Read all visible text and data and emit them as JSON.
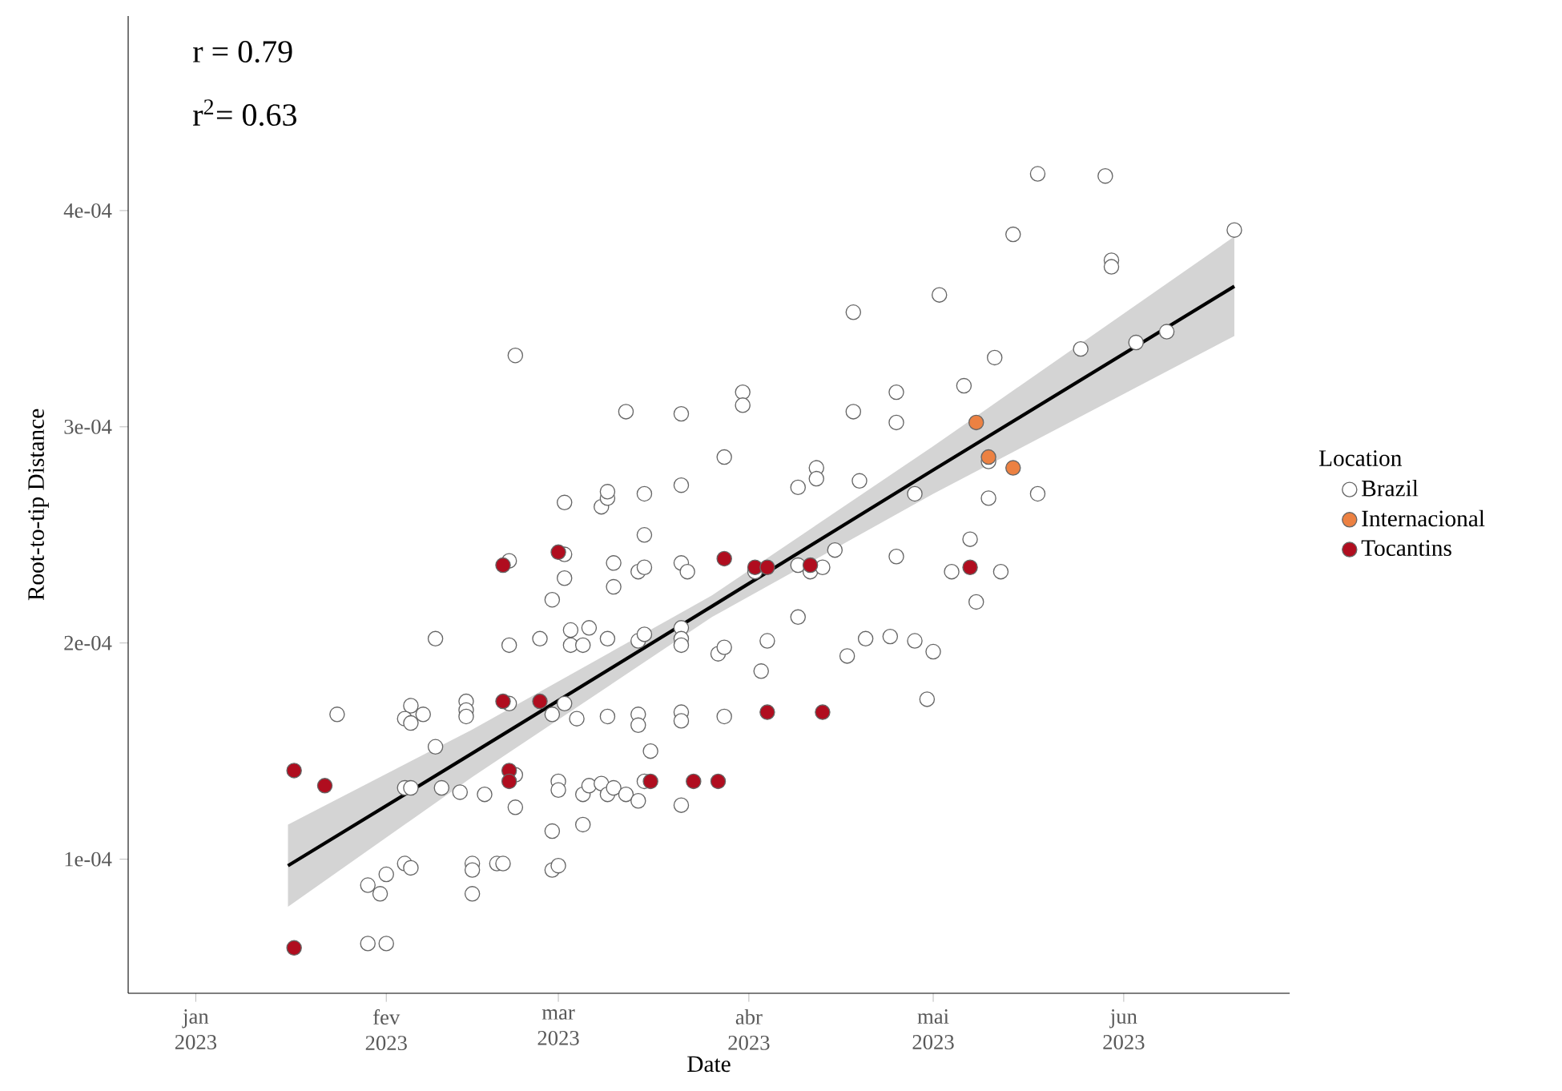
{
  "chart_data": {
    "type": "scatter",
    "xlabel": "Date",
    "ylabel": "Root-to-tip Distance",
    "legend_title": "Location",
    "legend": "right",
    "marker": "circle",
    "annotations": [
      "r = 0.79",
      "r$^{2}$= 0.63"
    ],
    "xlim": [
      "2022-12-21",
      "2023-06-28"
    ],
    "ylim": [
      3.8e-05,
      0.00049
    ],
    "xticks": [
      {
        "value": "2023-01-01",
        "label": "jan 2023"
      },
      {
        "value": "2023-02-01",
        "label": "fev 2023"
      },
      {
        "value": "2023-03-01",
        "label": "mar 2023"
      },
      {
        "value": "2023-04-01",
        "label": "abr 2023"
      },
      {
        "value": "2023-05-01",
        "label": "mai 2023"
      },
      {
        "value": "2023-06-01",
        "label": "jun 2023"
      }
    ],
    "yticks": [
      {
        "value": 0.0001,
        "label": "1e-04"
      },
      {
        "value": 0.0002,
        "label": "2e-04"
      },
      {
        "value": 0.0003,
        "label": "3e-04"
      },
      {
        "value": 0.0004,
        "label": "4e-04"
      }
    ],
    "series": [
      {
        "name": "Brazil",
        "color": "#ffffff",
        "x": [
          "2023-01-24",
          "2023-01-29",
          "2023-01-31",
          "2023-01-29",
          "2023-02-01",
          "2023-02-01",
          "2023-02-04",
          "2023-02-05",
          "2023-02-04",
          "2023-02-05",
          "2023-02-05",
          "2023-02-04",
          "2023-02-05",
          "2023-02-07",
          "2023-02-09",
          "2023-02-09",
          "2023-02-10",
          "2023-02-13",
          "2023-02-17",
          "2023-02-14",
          "2023-02-14",
          "2023-02-14",
          "2023-02-15",
          "2023-02-15",
          "2023-02-15",
          "2023-02-19",
          "2023-02-20",
          "2023-02-21",
          "2023-02-21",
          "2023-02-22",
          "2023-02-21",
          "2023-02-22",
          "2023-02-22",
          "2023-02-28",
          "2023-02-26",
          "2023-02-28",
          "2023-02-28",
          "2023-02-28",
          "2023-03-01",
          "2023-03-01",
          "2023-03-01",
          "2023-03-02",
          "2023-03-02",
          "2023-03-02",
          "2023-03-03",
          "2023-03-03",
          "2023-03-02",
          "2023-03-04",
          "2023-03-05",
          "2023-03-05",
          "2023-03-05",
          "2023-03-06",
          "2023-03-06",
          "2023-03-08",
          "2023-03-08",
          "2023-03-09",
          "2023-03-09",
          "2023-03-09",
          "2023-03-09",
          "2023-03-09",
          "2023-03-10",
          "2023-03-10",
          "2023-03-10",
          "2023-03-12",
          "2023-03-12",
          "2023-03-14",
          "2023-03-15",
          "2023-03-14",
          "2023-03-15",
          "2023-03-14",
          "2023-03-14",
          "2023-03-14",
          "2023-03-15",
          "2023-03-15",
          "2023-03-15",
          "2023-03-16",
          "2023-03-21",
          "2023-03-21",
          "2023-03-21",
          "2023-03-22",
          "2023-03-21",
          "2023-03-21",
          "2023-03-21",
          "2023-03-21",
          "2023-03-21",
          "2023-03-21",
          "2023-03-27",
          "2023-03-28",
          "2023-03-28",
          "2023-03-28",
          "2023-03-31",
          "2023-03-31",
          "2023-04-03",
          "2023-04-04",
          "2023-04-02",
          "2023-04-09",
          "2023-04-09",
          "2023-04-09",
          "2023-04-11",
          "2023-04-12",
          "2023-04-12",
          "2023-04-13",
          "2023-04-15",
          "2023-04-17",
          "2023-04-18",
          "2023-04-18",
          "2023-04-19",
          "2023-04-20",
          "2023-04-24",
          "2023-04-25",
          "2023-04-25",
          "2023-04-25",
          "2023-04-28",
          "2023-04-28",
          "2023-04-30",
          "2023-05-01",
          "2023-05-02",
          "2023-05-04",
          "2023-05-06",
          "2023-05-07",
          "2023-05-08",
          "2023-05-10",
          "2023-05-10",
          "2023-05-11",
          "2023-05-12",
          "2023-05-14",
          "2023-05-18",
          "2023-05-18",
          "2023-05-25",
          "2023-05-29",
          "2023-05-30",
          "2023-05-30",
          "2023-06-03",
          "2023-06-08",
          "2023-06-19"
        ],
        "values": [
          0.000167,
          8.8e-05,
          8.4e-05,
          6.1e-05,
          6.1e-05,
          9.3e-05,
          9.8e-05,
          9.6e-05,
          0.000133,
          0.000133,
          0.000171,
          0.000165,
          0.000163,
          0.000167,
          0.000202,
          0.000152,
          0.000133,
          0.000131,
          0.00013,
          0.000173,
          0.000169,
          0.000166,
          9.8e-05,
          9.5e-05,
          8.4e-05,
          9.8e-05,
          9.8e-05,
          0.000199,
          0.000238,
          0.000139,
          0.000172,
          0.000124,
          0.000333,
          0.00022,
          0.000202,
          0.000167,
          0.000113,
          9.5e-05,
          9.7e-05,
          0.000136,
          0.000132,
          0.000265,
          0.000241,
          0.00023,
          0.000206,
          0.000199,
          0.000172,
          0.000165,
          0.000199,
          0.00013,
          0.000116,
          0.000207,
          0.000134,
          0.000135,
          0.000263,
          0.000267,
          0.00027,
          0.000202,
          0.000166,
          0.00013,
          0.000237,
          0.000226,
          0.000133,
          0.000307,
          0.00013,
          0.000233,
          0.000235,
          0.000201,
          0.000204,
          0.000167,
          0.000162,
          0.000127,
          0.000136,
          0.000269,
          0.00025,
          0.00015,
          0.000306,
          0.000273,
          0.000237,
          0.000233,
          0.000207,
          0.000202,
          0.000199,
          0.000168,
          0.000164,
          0.000125,
          0.000195,
          0.000198,
          0.000286,
          0.000166,
          0.000316,
          0.00031,
          0.000187,
          0.000201,
          0.000233,
          0.000236,
          0.000272,
          0.000212,
          0.000233,
          0.000281,
          0.000276,
          0.000235,
          0.000243,
          0.000194,
          0.000353,
          0.000307,
          0.000275,
          0.000202,
          0.000203,
          0.000316,
          0.000302,
          0.00024,
          0.000269,
          0.000201,
          0.000174,
          0.000196,
          0.000361,
          0.000233,
          0.000319,
          0.000248,
          0.000219,
          0.000284,
          0.000267,
          0.000332,
          0.000233,
          0.000389,
          0.000417,
          0.000269,
          0.000336,
          0.000416,
          0.000377,
          0.000374,
          0.000339,
          0.000344,
          0.000391
        ]
      },
      {
        "name": "Internacional",
        "color": "#ec8142",
        "x": [
          "2023-05-08",
          "2023-05-10",
          "2023-05-14"
        ],
        "values": [
          0.000302,
          0.000286,
          0.000281
        ]
      },
      {
        "name": "Tocantins",
        "color": "#b00d1f",
        "x": [
          "2023-01-17",
          "2023-01-17",
          "2023-01-22",
          "2023-02-20",
          "2023-02-20",
          "2023-02-21",
          "2023-02-21",
          "2023-02-26",
          "2023-03-01",
          "2023-03-16",
          "2023-03-23",
          "2023-03-27",
          "2023-03-28",
          "2023-04-02",
          "2023-04-04",
          "2023-04-11",
          "2023-04-04",
          "2023-04-13",
          "2023-05-07"
        ],
        "values": [
          5.9e-05,
          0.000141,
          0.000134,
          0.000236,
          0.000173,
          0.000141,
          0.000136,
          0.000173,
          0.000242,
          0.000136,
          0.000136,
          0.000136,
          0.000239,
          0.000235,
          0.000235,
          0.000236,
          0.000168,
          0.000168,
          0.000235
        ]
      },
      {
        "type": "line",
        "marker": "none",
        "color": "#000000",
        "x": [
          "2023-01-16",
          "2023-02-15",
          "2023-03-26",
          "2023-05-01",
          "2023-06-19"
        ],
        "values": [
          9.7e-05,
          0.000149,
          0.000217,
          0.00028,
          0.000365
        ],
        "lower": [
          7.8e-05,
          0.000138,
          0.000212,
          0.000269,
          0.000342
        ],
        "upper": [
          0.000116,
          0.00016,
          0.000222,
          0.000291,
          0.000388
        ]
      }
    ]
  }
}
